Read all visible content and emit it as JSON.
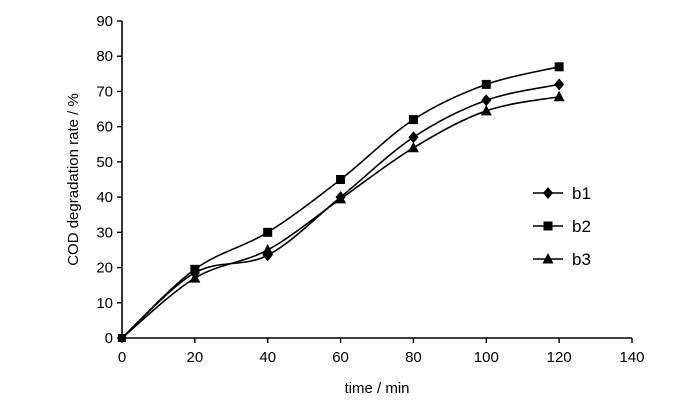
{
  "chart_data": {
    "type": "line",
    "title": "",
    "xlabel": "time / min",
    "ylabel": "COD degradation rate / %",
    "xlim": [
      0,
      140
    ],
    "ylim": [
      0,
      90
    ],
    "xticks": [
      0,
      20,
      40,
      60,
      80,
      100,
      120,
      140
    ],
    "yticks": [
      0,
      10,
      20,
      30,
      40,
      50,
      60,
      70,
      80,
      90
    ],
    "grid": false,
    "legend_position": "right",
    "x": [
      0,
      20,
      40,
      60,
      80,
      100,
      120
    ],
    "series": [
      {
        "name": "b1",
        "marker": "diamond",
        "values": [
          0,
          18.5,
          23.5,
          40,
          57,
          67.5,
          72
        ]
      },
      {
        "name": "b2",
        "marker": "square",
        "values": [
          0,
          19.5,
          30,
          45,
          62,
          72,
          77
        ]
      },
      {
        "name": "b3",
        "marker": "triangle",
        "values": [
          0,
          17,
          25,
          39.5,
          54,
          64.5,
          68.5
        ]
      }
    ],
    "colors": {
      "line": "#000000",
      "marker": "#000000",
      "axis": "#000000"
    }
  }
}
